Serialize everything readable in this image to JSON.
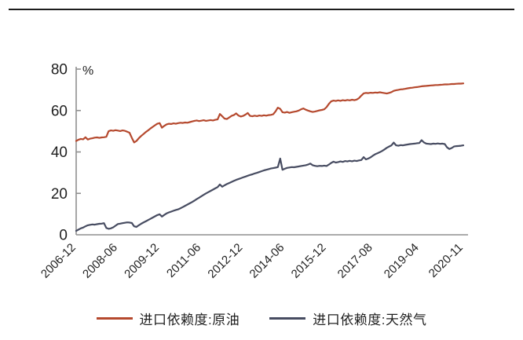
{
  "page": {
    "background": "#ffffff",
    "top_rule_color": "#1c1c1c"
  },
  "chart_data": {
    "type": "line",
    "title": "",
    "unit_label": "%",
    "xlabel": "",
    "ylabel": "",
    "ylim": [
      0,
      80
    ],
    "yticks": [
      0,
      20,
      40,
      60,
      80
    ],
    "grid": false,
    "legend_position": "bottom",
    "axis_color": "#8f8f8f",
    "tick_label_color": "#1f1f1f",
    "x_frequency": "monthly",
    "x_start": "2006-12",
    "x_end": "2020-11",
    "x_tick_labels": [
      "2006-12",
      "2008-06",
      "2009-12",
      "2011-06",
      "2012-12",
      "2014-06",
      "2015-12",
      "2017-08",
      "2019-04",
      "2020-11"
    ],
    "x_tick_month_index": [
      0,
      18,
      36,
      54,
      72,
      90,
      108,
      128,
      148,
      167
    ],
    "series": [
      {
        "name": "进口依赖度:原油",
        "color": "#b5492e",
        "values": [
          45.3,
          45.9,
          46.3,
          46.1,
          47.1,
          46.0,
          46.4,
          46.6,
          46.9,
          47.0,
          46.8,
          47.0,
          47.1,
          47.3,
          50.0,
          50.4,
          50.2,
          50.5,
          50.3,
          50.1,
          50.4,
          50.2,
          49.8,
          49.3,
          46.8,
          44.6,
          45.3,
          46.6,
          47.7,
          48.6,
          49.6,
          50.4,
          51.3,
          52.1,
          52.9,
          53.6,
          53.9,
          51.7,
          52.6,
          53.3,
          53.6,
          53.5,
          53.8,
          53.6,
          53.9,
          54.1,
          54.0,
          54.2,
          54.1,
          54.4,
          54.7,
          55.0,
          55.2,
          54.9,
          55.1,
          55.3,
          55.0,
          55.2,
          55.4,
          55.2,
          55.5,
          55.7,
          58.3,
          57.2,
          56.1,
          55.9,
          56.6,
          57.4,
          57.8,
          58.6,
          57.6,
          57.1,
          57.4,
          58.0,
          58.8,
          57.4,
          57.2,
          57.5,
          57.3,
          57.6,
          57.4,
          57.7,
          57.5,
          57.8,
          57.9,
          58.2,
          59.6,
          61.4,
          60.8,
          59.2,
          59.0,
          59.3,
          58.9,
          59.2,
          59.4,
          59.6,
          60.0,
          60.6,
          61.0,
          60.4,
          60.0,
          59.6,
          59.3,
          59.5,
          59.8,
          60.1,
          60.3,
          60.6,
          61.6,
          63.2,
          64.4,
          64.8,
          64.6,
          64.9,
          64.7,
          65.0,
          64.8,
          65.1,
          64.9,
          65.2,
          65.0,
          65.3,
          66.0,
          67.2,
          68.3,
          68.5,
          68.4,
          68.6,
          68.5,
          68.7,
          68.6,
          68.8,
          68.6,
          68.4,
          68.2,
          68.5,
          68.9,
          69.5,
          69.8,
          70.0,
          70.2,
          70.3,
          70.5,
          70.7,
          70.9,
          71.0,
          71.2,
          71.3,
          71.5,
          71.7,
          71.8,
          71.9,
          72.0,
          72.1,
          72.2,
          72.3,
          72.3,
          72.4,
          72.5,
          72.6,
          72.6,
          72.7,
          72.8,
          72.8,
          72.9,
          73.0,
          73.0,
          73.1
        ]
      },
      {
        "name": "进口依赖度:天然气",
        "color": "#474c61",
        "values": [
          1.9,
          2.5,
          3.1,
          3.5,
          4.1,
          4.6,
          4.8,
          5.0,
          4.9,
          5.1,
          5.3,
          5.4,
          5.6,
          3.3,
          2.9,
          3.1,
          3.6,
          4.4,
          5.2,
          5.4,
          5.6,
          5.8,
          6.0,
          5.9,
          5.7,
          4.1,
          3.8,
          4.6,
          5.3,
          5.9,
          6.5,
          7.1,
          7.7,
          8.3,
          8.9,
          9.5,
          9.9,
          8.8,
          9.6,
          10.3,
          10.8,
          11.2,
          11.6,
          12.0,
          12.3,
          12.8,
          13.4,
          14.0,
          14.6,
          15.2,
          15.8,
          16.5,
          17.2,
          17.9,
          18.6,
          19.3,
          20.0,
          20.6,
          21.2,
          21.8,
          22.4,
          23.0,
          24.3,
          23.2,
          23.9,
          24.5,
          25.0,
          25.5,
          26.0,
          26.5,
          26.9,
          27.3,
          27.7,
          28.1,
          28.5,
          28.9,
          29.2,
          29.6,
          29.9,
          30.3,
          30.7,
          31.1,
          31.4,
          31.7,
          32.0,
          32.2,
          32.4,
          32.7,
          36.8,
          31.4,
          31.9,
          32.3,
          32.5,
          32.7,
          32.6,
          32.8,
          33.0,
          33.2,
          33.4,
          33.6,
          33.9,
          34.4,
          33.6,
          33.3,
          33.1,
          33.3,
          33.2,
          33.4,
          33.2,
          33.9,
          34.7,
          35.3,
          34.9,
          35.1,
          35.4,
          35.2,
          35.6,
          35.4,
          35.7,
          35.5,
          35.8,
          35.6,
          35.9,
          36.1,
          37.5,
          36.4,
          36.8,
          37.4,
          38.2,
          38.9,
          39.4,
          39.9,
          40.5,
          41.2,
          42.0,
          42.6,
          43.2,
          44.5,
          43.2,
          43.0,
          43.3,
          43.2,
          43.4,
          43.6,
          43.8,
          43.9,
          44.0,
          44.2,
          44.3,
          45.7,
          44.6,
          44.0,
          43.9,
          43.8,
          44.0,
          43.9,
          44.1,
          43.9,
          44.0,
          43.8,
          42.2,
          41.4,
          41.9,
          42.6,
          42.8,
          42.9,
          43.0,
          43.2
        ]
      }
    ]
  }
}
